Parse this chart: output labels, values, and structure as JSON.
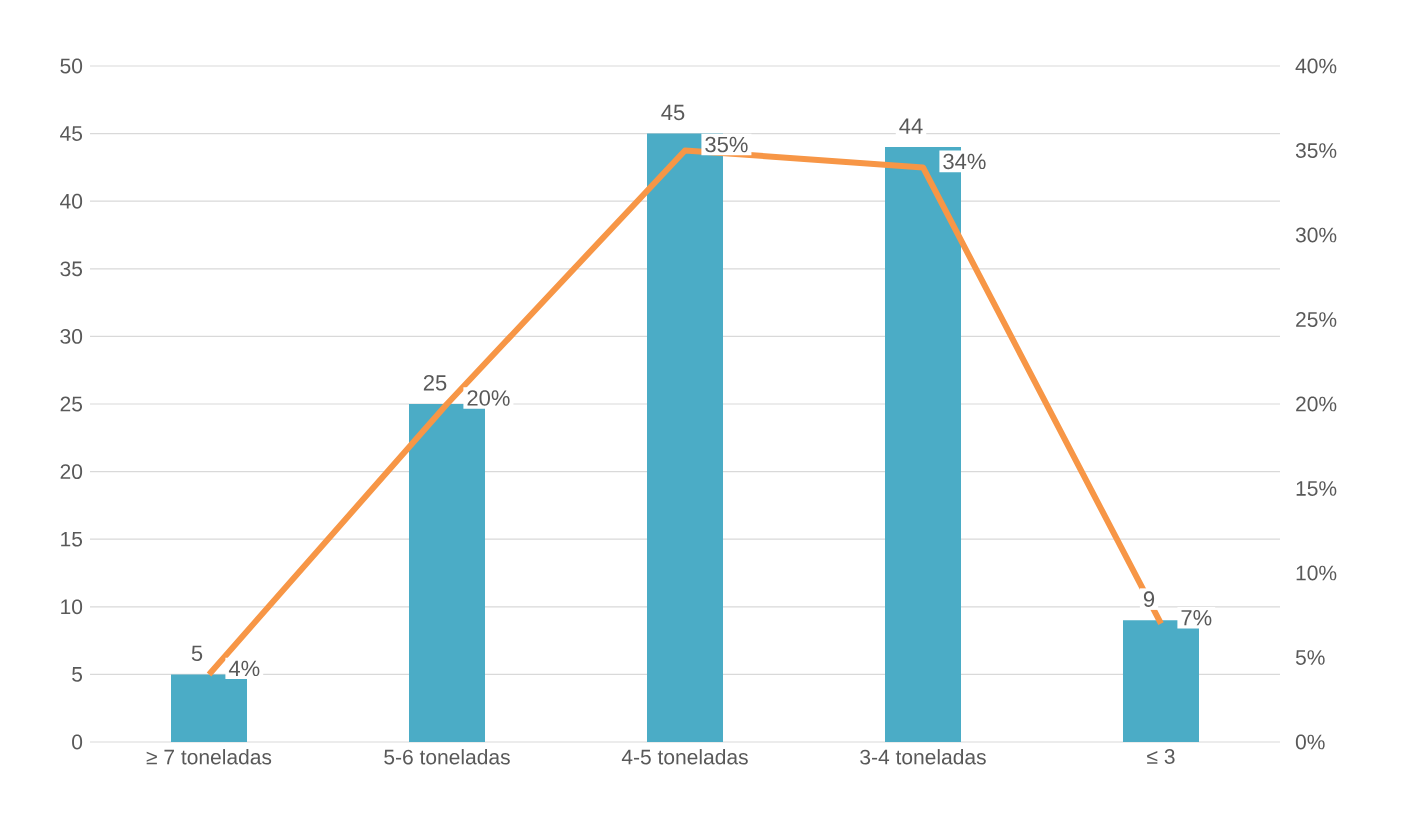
{
  "chart_data": {
    "type": "bar",
    "categories": [
      "≥ 7 toneladas",
      "5-6 toneladas",
      "4-5 toneladas",
      "3-4 toneladas",
      "≤ 3"
    ],
    "series": [
      {
        "color": "#4bacc6",
        "values": [
          5,
          25,
          45,
          44,
          9
        ],
        "value_labels": [
          "5",
          "25",
          "45",
          "44",
          "9"
        ]
      },
      {
        "type": "line",
        "axis": "y2",
        "color": "#f79646",
        "values": [
          4,
          20,
          35,
          34,
          7
        ],
        "value_labels": [
          "4%",
          "20%",
          "35%",
          "34%",
          "7%"
        ]
      }
    ],
    "ylim": [
      0,
      50
    ],
    "yticks": [
      0,
      5,
      10,
      15,
      20,
      25,
      30,
      35,
      40,
      45,
      50
    ],
    "y2lim": [
      0,
      40
    ],
    "y2ticks": [
      {
        "value": 0,
        "label": "0%"
      },
      {
        "value": 5,
        "label": "5%"
      },
      {
        "value": 10,
        "label": "10%"
      },
      {
        "value": 15,
        "label": "15%"
      },
      {
        "value": 20,
        "label": "20%"
      },
      {
        "value": 25,
        "label": "25%"
      },
      {
        "value": 30,
        "label": "30%"
      },
      {
        "value": 35,
        "label": "35%"
      },
      {
        "value": 40,
        "label": "40%"
      }
    ],
    "grid": "y"
  }
}
